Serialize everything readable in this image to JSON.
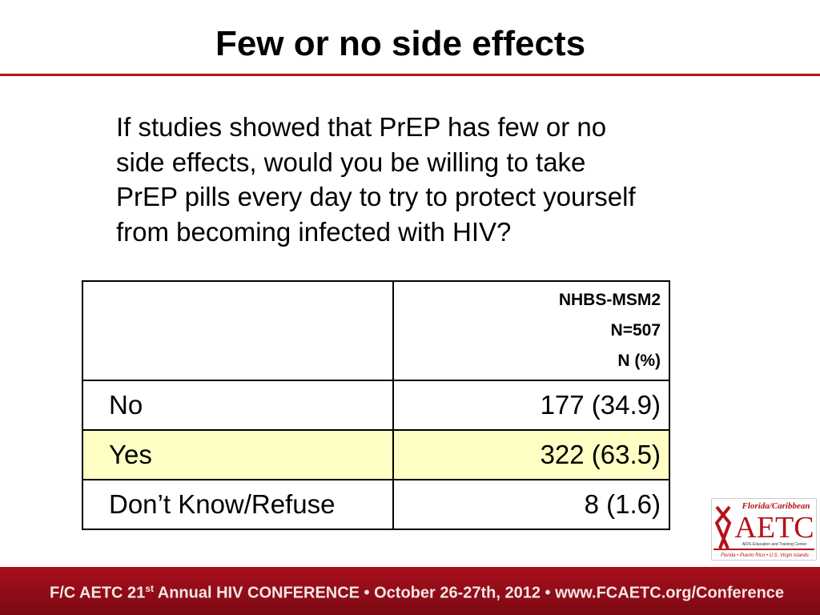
{
  "header": {
    "title": "Few or no side effects"
  },
  "question": [
    "If studies showed that PrEP has few or no",
    "side effects, would you be willing to take",
    "PrEP pills every day to try to protect yourself",
    "from becoming infected with HIV?"
  ],
  "table": {
    "header": [
      "NHBS-MSM2",
      "N=507",
      "N (%)"
    ],
    "rows": [
      [
        "No",
        "177 (34.9)"
      ],
      [
        "Yes",
        "322 (63.5)"
      ],
      [
        "Don’t Know/Refuse",
        "8 (1.6)"
      ]
    ]
  },
  "logo": {
    "top": "Florida/Caribbean",
    "name": "AETC",
    "sub": "AIDS Education and Training Center",
    "places": "Florida • Puerto Rico • U.S. Virgin Islands"
  },
  "footer": {
    "part1": "F/C AETC 21",
    "sup": "st",
    "part2": " Annual HIV CONFERENCE • October 26-27th, 2012 • www.FCAETC.org/Conference"
  }
}
